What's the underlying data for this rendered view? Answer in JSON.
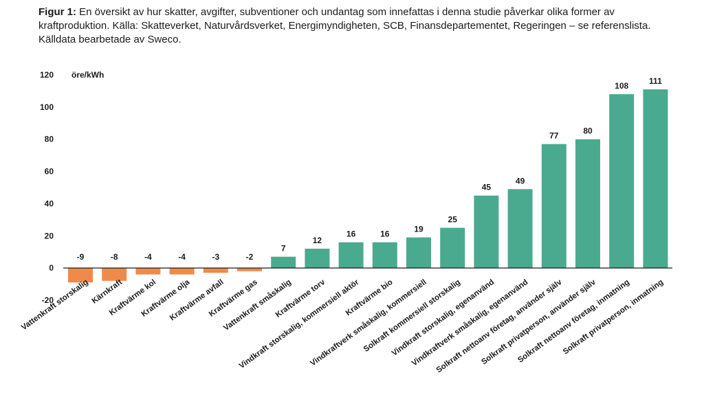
{
  "caption": {
    "label": "Figur 1:",
    "text": "En översikt av hur skatter, avgifter, subventioner och undantag som innefattas i denna studie påverkar olika former av kraftproduktion. Källa: Skatteverket, Naturvårdsverket, Energimyndigheten, SCB, Finansdepartementet, Regeringen – se referenslista. Källdata bearbetade av Sweco."
  },
  "colors": {
    "positive": "#4aaa90",
    "negative": "#f08a4b",
    "axis": "#1a1a1a"
  },
  "chart_data": {
    "type": "bar",
    "title": "",
    "xlabel": "",
    "ylabel": "öre/kWh",
    "ylim": [
      -20,
      120
    ],
    "yticks": [
      -20,
      0,
      20,
      40,
      60,
      80,
      100,
      120
    ],
    "grid": false,
    "categories": [
      "Vattenkraft storskalig",
      "Kärnkraft",
      "Kraftvärme kol",
      "Kraftvärme olja",
      "Kraftvärme avfall",
      "Kraftvärme gas",
      "Vattenkraft småskalig",
      "Kraftvärme torv",
      "Vindkraft storskalig, kommersiell aktör",
      "Kraftvärme bio",
      "Vindkraftverk småskalig, kommersiell",
      "Solkraft kommersiell storskalig",
      "Vindkraft storskalig, egenanvänd",
      "Vindkraftverk småskalig, egenanvänd",
      "Solkraft nettoanv företag, använder själv",
      "Solkraft privatperson, använder själv",
      "Solkraft nettoanv företag, inmatning",
      "Solkraft privatperson, inmatning"
    ],
    "values": [
      -9,
      -8,
      -4,
      -4,
      -3,
      -2,
      7,
      12,
      16,
      16,
      19,
      25,
      45,
      49,
      77,
      80,
      108,
      111
    ],
    "data_labels": [
      "-9",
      "-8",
      "-4",
      "-4",
      "-3",
      "-2",
      "7",
      "12",
      "16",
      "16",
      "19",
      "25",
      "45",
      "49",
      "77",
      "80",
      "108",
      "111"
    ]
  }
}
